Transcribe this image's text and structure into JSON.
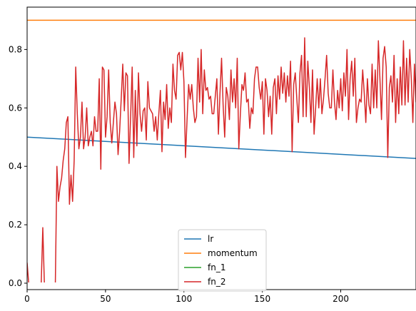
{
  "chart_data": {
    "type": "line",
    "title": "",
    "xlabel": "",
    "ylabel": "",
    "xlim": [
      0,
      248
    ],
    "ylim": [
      -0.022,
      0.945
    ],
    "xticks": [
      0,
      50,
      100,
      150,
      200
    ],
    "yticks": [
      0.0,
      0.2,
      0.4,
      0.6,
      0.8
    ],
    "grid": false,
    "legend": "lower-center",
    "x_start": 0,
    "x_step": 1,
    "series": [
      {
        "name": "lr",
        "color": "#1f77b4",
        "x": [
          0,
          248
        ],
        "values": [
          0.5,
          0.427
        ]
      },
      {
        "name": "momentum",
        "color": "#ff7f0e",
        "x": [
          0,
          248
        ],
        "values": [
          0.9,
          0.9
        ]
      },
      {
        "name": "fn_1",
        "color": "#2ca02c",
        "x": [
          0,
          248
        ],
        "values": [
          0.0,
          0.0
        ]
      },
      {
        "name": "fn_2",
        "color": "#d62728",
        "values": [
          0.07,
          0.0,
          0.0,
          0.0,
          0.0,
          0.0,
          0.0,
          0.0,
          0.0,
          0.0,
          0.19,
          0.0,
          0.0,
          0.0,
          0.0,
          0.0,
          0.0,
          0.0,
          0.0,
          0.4,
          0.28,
          0.33,
          0.36,
          0.42,
          0.46,
          0.55,
          0.57,
          0.27,
          0.37,
          0.28,
          0.42,
          0.74,
          0.58,
          0.46,
          0.5,
          0.62,
          0.46,
          0.5,
          0.6,
          0.47,
          0.5,
          0.52,
          0.47,
          0.57,
          0.52,
          0.52,
          0.7,
          0.39,
          0.74,
          0.73,
          0.5,
          0.57,
          0.73,
          0.55,
          0.48,
          0.55,
          0.62,
          0.58,
          0.44,
          0.52,
          0.63,
          0.75,
          0.59,
          0.72,
          0.71,
          0.41,
          0.57,
          0.74,
          0.43,
          0.66,
          0.47,
          0.72,
          0.58,
          0.52,
          0.59,
          0.6,
          0.49,
          0.69,
          0.6,
          0.59,
          0.58,
          0.52,
          0.57,
          0.49,
          0.58,
          0.66,
          0.45,
          0.62,
          0.56,
          0.68,
          0.53,
          0.6,
          0.55,
          0.75,
          0.66,
          0.63,
          0.78,
          0.79,
          0.73,
          0.79,
          0.69,
          0.43,
          0.56,
          0.68,
          0.63,
          0.68,
          0.6,
          0.55,
          0.57,
          0.77,
          0.62,
          0.8,
          0.58,
          0.73,
          0.66,
          0.67,
          0.63,
          0.64,
          0.58,
          0.58,
          0.64,
          0.7,
          0.51,
          0.65,
          0.77,
          0.61,
          0.5,
          0.67,
          0.64,
          0.56,
          0.73,
          0.62,
          0.7,
          0.6,
          0.77,
          0.46,
          0.58,
          0.68,
          0.66,
          0.72,
          0.62,
          0.63,
          0.53,
          0.6,
          0.58,
          0.7,
          0.74,
          0.74,
          0.67,
          0.63,
          0.69,
          0.51,
          0.7,
          0.66,
          0.57,
          0.64,
          0.51,
          0.67,
          0.7,
          0.58,
          0.71,
          0.63,
          0.74,
          0.65,
          0.72,
          0.62,
          0.71,
          0.64,
          0.76,
          0.45,
          0.68,
          0.72,
          0.63,
          0.55,
          0.72,
          0.78,
          0.57,
          0.84,
          0.57,
          0.76,
          0.67,
          0.55,
          0.73,
          0.51,
          0.6,
          0.7,
          0.6,
          0.7,
          0.58,
          0.63,
          0.7,
          0.78,
          0.65,
          0.6,
          0.6,
          0.73,
          0.62,
          0.56,
          0.66,
          0.6,
          0.7,
          0.59,
          0.72,
          0.64,
          0.8,
          0.56,
          0.7,
          0.76,
          0.64,
          0.77,
          0.55,
          0.6,
          0.63,
          0.62,
          0.73,
          0.65,
          0.55,
          0.7,
          0.61,
          0.58,
          0.75,
          0.6,
          0.73,
          0.6,
          0.83,
          0.7,
          0.56,
          0.77,
          0.81,
          0.74,
          0.43,
          0.67,
          0.71,
          0.62,
          0.78,
          0.55,
          0.7,
          0.58,
          0.74,
          0.61,
          0.83,
          0.61,
          0.77,
          0.62,
          0.8,
          0.7,
          0.55,
          0.75,
          0.62,
          0.79,
          0.73,
          0.6,
          0.78,
          0.64,
          0.63,
          0.68,
          0.62,
          0.72
        ]
      }
    ]
  }
}
